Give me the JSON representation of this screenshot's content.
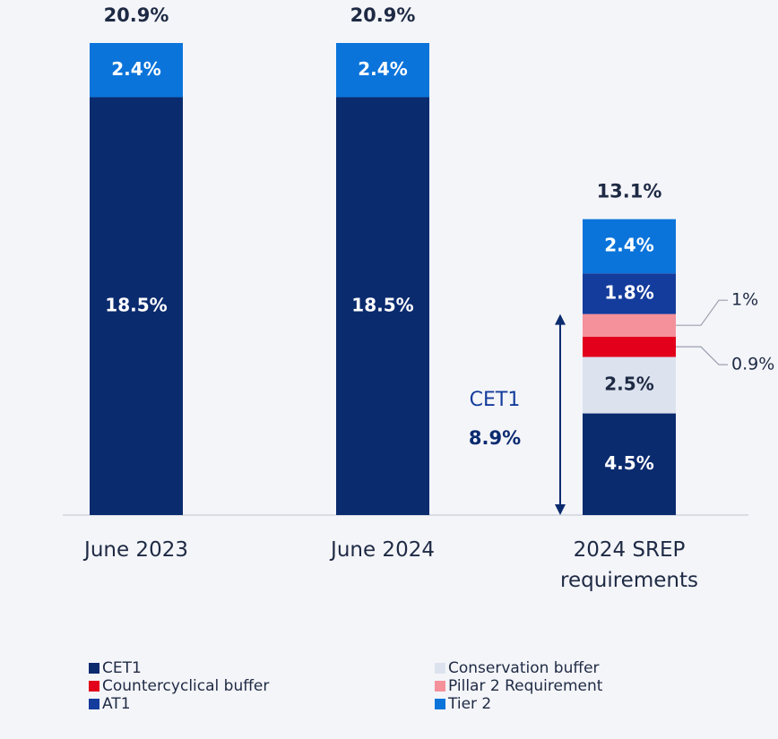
{
  "chart_data": {
    "type": "stacked_bar",
    "categories": [
      "June 2023",
      "June 2024",
      "2024 SREP requirements"
    ],
    "series": [
      {
        "name": "CET1",
        "color": "#0b2b6f",
        "values": [
          18.5,
          18.5,
          4.5
        ],
        "value_labels": [
          "18.5%",
          "18.5%",
          "4.5%"
        ]
      },
      {
        "name": "Conservation buffer",
        "color": "#dce3ee",
        "values": [
          null,
          null,
          2.5
        ],
        "value_labels": [
          null,
          null,
          "2.5%"
        ]
      },
      {
        "name": "Countercyclical buffer",
        "color": "#e2001a",
        "values": [
          null,
          null,
          0.9
        ],
        "value_labels": [
          null,
          null,
          "0.9%"
        ]
      },
      {
        "name": "Pillar 2 Requirement",
        "color": "#f5919b",
        "values": [
          null,
          null,
          1
        ],
        "value_labels": [
          null,
          null,
          "1%"
        ]
      },
      {
        "name": "AT1",
        "color": "#143c9c",
        "values": [
          null,
          null,
          1.8
        ],
        "value_labels": [
          null,
          null,
          "1.8%"
        ]
      },
      {
        "name": "Tier 2",
        "color": "#0b74da",
        "values": [
          2.4,
          2.4,
          2.4
        ],
        "value_labels": [
          "2.4%",
          "2.4%",
          "2.4%"
        ]
      }
    ],
    "totals": [
      20.9,
      20.9,
      13.1
    ],
    "total_labels": [
      "20.9%",
      "20.9%",
      "13.1%"
    ],
    "annotation": {
      "label": "CET1",
      "value": 8.9,
      "value_label": "8.9%"
    }
  }
}
